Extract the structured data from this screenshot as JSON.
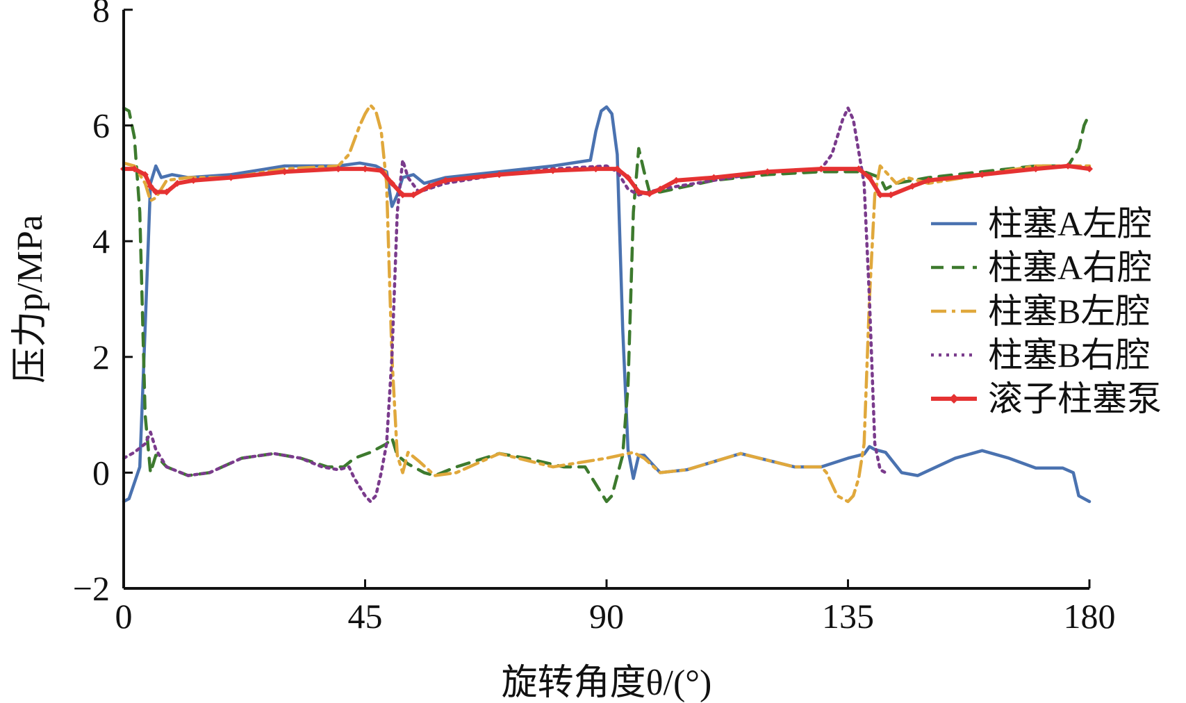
{
  "chart_data": {
    "type": "line",
    "title": "",
    "xlabel": "旋转角度θ/(°)",
    "ylabel": "压力p/MPa",
    "xlim": [
      0,
      180
    ],
    "ylim": [
      -2,
      8
    ],
    "xticks": [
      "0",
      "45",
      "90",
      "135",
      "180"
    ],
    "yticks": [
      "−2",
      "0",
      "2",
      "4",
      "6",
      "8"
    ],
    "grid": false,
    "legend_position": "right",
    "series": [
      {
        "name": "柱塞A左腔",
        "color": "#4a72b0",
        "style": "solid",
        "points": [
          [
            0,
            -0.5
          ],
          [
            1,
            -0.45
          ],
          [
            3,
            0.1
          ],
          [
            4,
            2.5
          ],
          [
            5,
            5.0
          ],
          [
            6,
            5.3
          ],
          [
            7,
            5.1
          ],
          [
            9,
            5.15
          ],
          [
            12,
            5.1
          ],
          [
            20,
            5.15
          ],
          [
            30,
            5.3
          ],
          [
            40,
            5.3
          ],
          [
            44,
            5.35
          ],
          [
            47,
            5.3
          ],
          [
            49,
            5.2
          ],
          [
            50,
            4.6
          ],
          [
            51,
            4.8
          ],
          [
            52,
            5.1
          ],
          [
            54,
            5.15
          ],
          [
            56,
            5.0
          ],
          [
            60,
            5.1
          ],
          [
            70,
            5.2
          ],
          [
            80,
            5.3
          ],
          [
            87,
            5.4
          ],
          [
            88,
            5.9
          ],
          [
            89,
            6.25
          ],
          [
            90,
            6.32
          ],
          [
            91,
            6.2
          ],
          [
            92,
            5.5
          ],
          [
            93,
            2.5
          ],
          [
            94,
            0.4
          ],
          [
            95,
            -0.1
          ],
          [
            96,
            0.3
          ],
          [
            97,
            0.3
          ],
          [
            100,
            0.0
          ],
          [
            105,
            0.05
          ],
          [
            115,
            0.33
          ],
          [
            125,
            0.1
          ],
          [
            130,
            0.1
          ],
          [
            135,
            0.25
          ],
          [
            138,
            0.32
          ],
          [
            139,
            0.45
          ],
          [
            140,
            0.4
          ],
          [
            142,
            0.35
          ],
          [
            145,
            0.0
          ],
          [
            148,
            -0.05
          ],
          [
            155,
            0.25
          ],
          [
            160,
            0.38
          ],
          [
            165,
            0.25
          ],
          [
            170,
            0.08
          ],
          [
            175,
            0.08
          ],
          [
            177,
            0.0
          ],
          [
            178,
            -0.4
          ],
          [
            180,
            -0.5
          ]
        ]
      },
      {
        "name": "柱塞A右腔",
        "color": "#3d7a2e",
        "style": "dash",
        "points": [
          [
            0,
            6.3
          ],
          [
            1,
            6.25
          ],
          [
            2,
            5.8
          ],
          [
            3,
            4.5
          ],
          [
            4,
            1.0
          ],
          [
            5,
            0.0
          ],
          [
            6,
            0.3
          ],
          [
            8,
            0.1
          ],
          [
            12,
            -0.05
          ],
          [
            16,
            0.0
          ],
          [
            22,
            0.25
          ],
          [
            28,
            0.33
          ],
          [
            33,
            0.25
          ],
          [
            38,
            0.1
          ],
          [
            41,
            0.1
          ],
          [
            43,
            0.25
          ],
          [
            46,
            0.35
          ],
          [
            49,
            0.5
          ],
          [
            50,
            0.6
          ],
          [
            51,
            0.3
          ],
          [
            53,
            0.15
          ],
          [
            56,
            0.0
          ],
          [
            58,
            -0.05
          ],
          [
            62,
            0.1
          ],
          [
            70,
            0.33
          ],
          [
            75,
            0.25
          ],
          [
            82,
            0.1
          ],
          [
            86,
            0.1
          ],
          [
            88,
            -0.2
          ],
          [
            90,
            -0.5
          ],
          [
            91,
            -0.4
          ],
          [
            93,
            0.3
          ],
          [
            94,
            1.5
          ],
          [
            95,
            4.5
          ],
          [
            96,
            5.6
          ],
          [
            97,
            5.2
          ],
          [
            98,
            4.85
          ],
          [
            100,
            4.85
          ],
          [
            110,
            5.05
          ],
          [
            120,
            5.15
          ],
          [
            130,
            5.2
          ],
          [
            138,
            5.2
          ],
          [
            141,
            5.1
          ],
          [
            142,
            4.9
          ],
          [
            144,
            5.0
          ],
          [
            150,
            5.1
          ],
          [
            160,
            5.2
          ],
          [
            170,
            5.3
          ],
          [
            176,
            5.3
          ],
          [
            178,
            5.6
          ],
          [
            179,
            6.0
          ],
          [
            180,
            6.2
          ]
        ]
      },
      {
        "name": "柱塞B左腔",
        "color": "#e0a83c",
        "style": "dashdot",
        "points": [
          [
            0,
            5.35
          ],
          [
            2,
            5.3
          ],
          [
            4,
            5.0
          ],
          [
            5,
            4.7
          ],
          [
            6,
            4.75
          ],
          [
            8,
            5.05
          ],
          [
            12,
            5.1
          ],
          [
            20,
            5.1
          ],
          [
            30,
            5.25
          ],
          [
            40,
            5.3
          ],
          [
            42,
            5.5
          ],
          [
            44,
            6.0
          ],
          [
            45,
            6.2
          ],
          [
            46,
            6.35
          ],
          [
            47,
            6.25
          ],
          [
            48,
            5.9
          ],
          [
            49,
            5.0
          ],
          [
            50,
            2.0
          ],
          [
            51,
            0.3
          ],
          [
            52,
            0.0
          ],
          [
            53,
            0.35
          ],
          [
            55,
            0.2
          ],
          [
            58,
            -0.05
          ],
          [
            62,
            0.0
          ],
          [
            70,
            0.33
          ],
          [
            80,
            0.1
          ],
          [
            90,
            0.25
          ],
          [
            95,
            0.35
          ],
          [
            97,
            0.25
          ],
          [
            100,
            0.0
          ],
          [
            105,
            0.05
          ],
          [
            115,
            0.33
          ],
          [
            125,
            0.1
          ],
          [
            130,
            0.1
          ],
          [
            131,
            0.0
          ],
          [
            133,
            -0.4
          ],
          [
            135,
            -0.5
          ],
          [
            136,
            -0.4
          ],
          [
            137,
            -0.1
          ],
          [
            138,
            0.5
          ],
          [
            139,
            3.0
          ],
          [
            140,
            4.8
          ],
          [
            141,
            5.3
          ],
          [
            142,
            5.2
          ],
          [
            144,
            5.0
          ],
          [
            146,
            5.1
          ],
          [
            150,
            5.0
          ],
          [
            160,
            5.15
          ],
          [
            170,
            5.3
          ],
          [
            180,
            5.3
          ]
        ]
      },
      {
        "name": "柱塞B右腔",
        "color": "#7a3b8c",
        "style": "dot",
        "points": [
          [
            0,
            0.25
          ],
          [
            2,
            0.35
          ],
          [
            4,
            0.5
          ],
          [
            5,
            0.7
          ],
          [
            6,
            0.4
          ],
          [
            8,
            0.1
          ],
          [
            12,
            -0.05
          ],
          [
            16,
            0.0
          ],
          [
            22,
            0.25
          ],
          [
            28,
            0.33
          ],
          [
            33,
            0.25
          ],
          [
            37,
            0.1
          ],
          [
            40,
            0.05
          ],
          [
            42,
            0.1
          ],
          [
            43,
            -0.1
          ],
          [
            45,
            -0.4
          ],
          [
            46,
            -0.5
          ],
          [
            47,
            -0.4
          ],
          [
            48,
            0.0
          ],
          [
            49,
            0.5
          ],
          [
            50,
            2.0
          ],
          [
            51,
            4.5
          ],
          [
            52,
            5.4
          ],
          [
            53,
            5.1
          ],
          [
            55,
            4.85
          ],
          [
            60,
            5.0
          ],
          [
            70,
            5.15
          ],
          [
            80,
            5.25
          ],
          [
            90,
            5.3
          ],
          [
            92,
            5.2
          ],
          [
            94,
            4.9
          ],
          [
            96,
            4.8
          ],
          [
            100,
            4.9
          ],
          [
            110,
            5.05
          ],
          [
            120,
            5.2
          ],
          [
            130,
            5.25
          ],
          [
            132,
            5.5
          ],
          [
            134,
            6.1
          ],
          [
            135,
            6.3
          ],
          [
            136,
            6.1
          ],
          [
            138,
            5.0
          ],
          [
            139,
            3.0
          ],
          [
            140,
            0.5
          ],
          [
            141,
            0.05
          ],
          [
            142,
            0.0
          ]
        ]
      },
      {
        "name": "滚子柱塞泵",
        "color": "#e53232",
        "style": "solid-marker",
        "points": [
          [
            0,
            5.25
          ],
          [
            2,
            5.25
          ],
          [
            4,
            5.15
          ],
          [
            5,
            4.95
          ],
          [
            6,
            4.85
          ],
          [
            8,
            4.85
          ],
          [
            10,
            5.0
          ],
          [
            13,
            5.05
          ],
          [
            20,
            5.1
          ],
          [
            30,
            5.2
          ],
          [
            40,
            5.25
          ],
          [
            45,
            5.25
          ],
          [
            48,
            5.22
          ],
          [
            50,
            5.0
          ],
          [
            52,
            4.8
          ],
          [
            54,
            4.8
          ],
          [
            57,
            4.95
          ],
          [
            60,
            5.05
          ],
          [
            70,
            5.15
          ],
          [
            80,
            5.22
          ],
          [
            88,
            5.25
          ],
          [
            92,
            5.25
          ],
          [
            94,
            5.1
          ],
          [
            96,
            4.85
          ],
          [
            98,
            4.82
          ],
          [
            100,
            4.9
          ],
          [
            103,
            5.05
          ],
          [
            110,
            5.1
          ],
          [
            120,
            5.2
          ],
          [
            130,
            5.25
          ],
          [
            137,
            5.25
          ],
          [
            139,
            5.1
          ],
          [
            141,
            4.8
          ],
          [
            143,
            4.8
          ],
          [
            147,
            4.95
          ],
          [
            150,
            5.05
          ],
          [
            160,
            5.15
          ],
          [
            170,
            5.25
          ],
          [
            176,
            5.3
          ],
          [
            180,
            5.25
          ]
        ]
      }
    ]
  }
}
